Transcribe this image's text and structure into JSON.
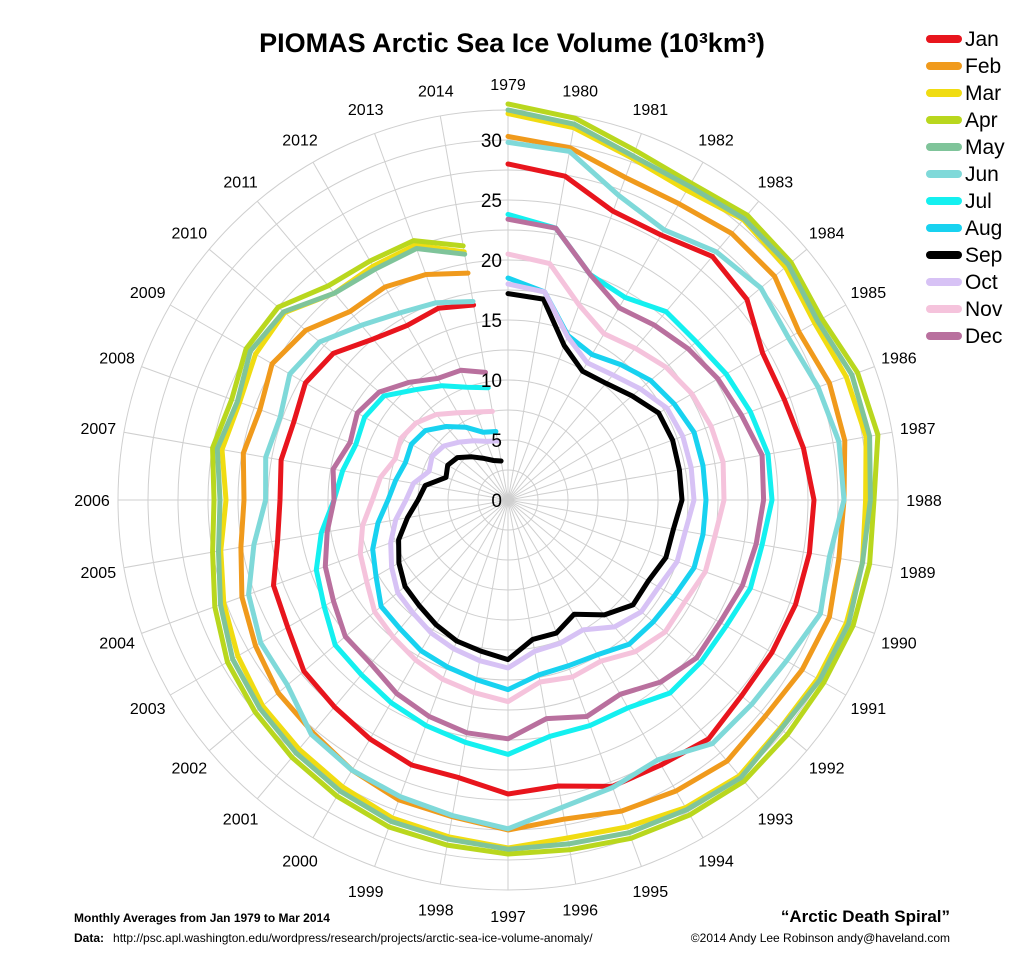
{
  "chart_data": {
    "type": "polar-line",
    "title": "PIOMAS Arctic Sea Ice Volume (10³km³)",
    "radial_axis": {
      "min": 0,
      "max": 30,
      "ticks": [
        0,
        5,
        10,
        15,
        20,
        25,
        30
      ],
      "tick_labels": [
        "0",
        "5",
        "10",
        "15",
        "20",
        "25",
        "30"
      ]
    },
    "grid": true,
    "legend_position": "top-right",
    "angular_categories": [
      "1979",
      "1980",
      "1981",
      "1982",
      "1983",
      "1984",
      "1985",
      "1986",
      "1987",
      "1988",
      "1989",
      "1990",
      "1991",
      "1992",
      "1993",
      "1994",
      "1995",
      "1996",
      "1997",
      "1998",
      "1999",
      "2000",
      "2001",
      "2002",
      "2003",
      "2004",
      "2005",
      "2006",
      "2007",
      "2008",
      "2009",
      "2010",
      "2011",
      "2012",
      "2013",
      "2014"
    ],
    "series": [
      {
        "name": "Jan",
        "color": "#e8151d",
        "values": [
          28.0,
          27.4,
          25.6,
          25.5,
          26.5,
          26.0,
          24.5,
          24.5,
          25.0,
          25.5,
          25.5,
          25.5,
          25.4,
          25.4,
          26.0,
          25.5,
          25.4,
          24.2,
          24.5,
          23.5,
          23.5,
          23.0,
          22.5,
          22.2,
          21.2,
          20.8,
          19.5,
          19.0,
          19.2,
          19.0,
          19.5,
          19.0,
          17.5,
          16.8,
          17.0,
          16.5
        ]
      },
      {
        "name": "Feb",
        "color": "#f09a1c",
        "values": [
          30.3,
          29.8,
          28.6,
          28.5,
          29.0,
          29.0,
          28.0,
          28.5,
          28.5,
          28.0,
          28.0,
          28.5,
          28.3,
          28.0,
          28.4,
          28.0,
          27.6,
          27.0,
          27.5,
          26.8,
          26.6,
          26.0,
          25.3,
          25.0,
          24.3,
          23.6,
          22.6,
          22.0,
          22.4,
          22.0,
          22.7,
          22.0,
          20.5,
          20.5,
          20.0,
          19.2
        ]
      },
      {
        "name": "Mar",
        "color": "#f0dc12",
        "values": [
          32.2,
          31.5,
          30.3,
          29.8,
          30.5,
          30.2,
          29.5,
          30.0,
          30.3,
          29.8,
          30.0,
          30.0,
          29.8,
          29.6,
          30.0,
          29.6,
          29.0,
          28.6,
          29.0,
          28.5,
          28.2,
          27.6,
          27.1,
          26.7,
          26.0,
          25.2,
          24.3,
          23.5,
          24.2,
          23.8,
          24.3,
          24.3,
          22.5,
          22.5,
          22.6,
          21.0
        ]
      },
      {
        "name": "Apr",
        "color": "#b9d71e",
        "values": [
          33.0,
          32.3,
          31.0,
          30.5,
          31.0,
          30.8,
          30.2,
          31.0,
          31.3,
          30.5,
          30.6,
          30.6,
          30.4,
          30.4,
          30.6,
          30.3,
          30.0,
          29.6,
          29.5,
          29.2,
          29.0,
          28.5,
          28.0,
          27.5,
          27.0,
          26.0,
          25.0,
          24.5,
          25.0,
          24.5,
          25.2,
          25.0,
          23.3,
          23.0,
          23.0,
          21.5
        ]
      },
      {
        "name": "May",
        "color": "#7fc49a",
        "values": [
          32.5,
          31.8,
          30.5,
          30.2,
          30.6,
          30.5,
          29.8,
          30.5,
          30.6,
          30.2,
          30.0,
          30.2,
          30.0,
          29.7,
          30.2,
          29.8,
          29.5,
          29.1,
          29.1,
          28.7,
          28.5,
          28.0,
          27.5,
          27.0,
          26.5,
          25.5,
          24.5,
          24.0,
          24.6,
          24.0,
          24.8,
          24.4,
          22.5,
          22.2,
          22.3,
          20.8
        ]
      },
      {
        "name": "Jun",
        "color": "#7fd9d9",
        "values": [
          29.8,
          29.5,
          27.0,
          26.0,
          27.0,
          27.5,
          27.0,
          27.5,
          28.0,
          28.0,
          27.2,
          27.7,
          26.8,
          26.5,
          26.5,
          25.0,
          25.5,
          26.0,
          27.4,
          26.7,
          26.3,
          26.0,
          25.5,
          24.0,
          23.8,
          23.0,
          21.5,
          20.2,
          20.5,
          20.2,
          21.0,
          20.5,
          19.0,
          18.0,
          17.5,
          16.8
        ]
      },
      {
        "name": "Jul",
        "color": "#14f0f0",
        "values": [
          23.8,
          23.0,
          20.0,
          19.5,
          20.5,
          20.5,
          21.0,
          21.5,
          22.0,
          22.0,
          21.5,
          21.5,
          21.0,
          21.0,
          21.0,
          20.0,
          20.0,
          20.0,
          21.2,
          20.5,
          20.0,
          19.5,
          19.0,
          18.8,
          17.7,
          17.0,
          15.8,
          14.5,
          14.0,
          13.5,
          13.8,
          13.5,
          12.0,
          11.0,
          10.0,
          9.5
        ]
      },
      {
        "name": "Aug",
        "color": "#18d2f0",
        "values": [
          18.5,
          17.6,
          14.6,
          14.0,
          14.7,
          15.5,
          16.0,
          16.5,
          16.5,
          16.5,
          16.5,
          16.5,
          16.0,
          15.8,
          15.7,
          14.9,
          14.7,
          14.8,
          15.8,
          15.2,
          14.8,
          14.5,
          14.0,
          13.8,
          12.7,
          12.0,
          11.0,
          10.0,
          9.5,
          9.1,
          9.3,
          9.0,
          8.0,
          7.0,
          6.0,
          5.8
        ]
      },
      {
        "name": "Sep",
        "color": "#000000",
        "values": [
          17.2,
          17.0,
          13.7,
          12.4,
          12.7,
          13.5,
          14.5,
          14.6,
          14.5,
          14.5,
          14.0,
          14.0,
          13.5,
          13.6,
          12.5,
          11.0,
          11.8,
          11.8,
          13.3,
          12.8,
          12.5,
          12.0,
          11.5,
          11.2,
          10.5,
          9.7,
          8.5,
          7.5,
          7.0,
          5.5,
          5.8,
          5.5,
          4.7,
          4.0,
          3.5,
          3.3
        ]
      },
      {
        "name": "Oct",
        "color": "#d7c2f5",
        "values": [
          18.0,
          17.6,
          14.5,
          13.2,
          13.6,
          14.4,
          15.3,
          15.5,
          15.5,
          15.5,
          15.0,
          15.0,
          14.5,
          14.5,
          13.8,
          12.5,
          12.7,
          12.8,
          14.0,
          13.6,
          13.2,
          12.8,
          12.3,
          12.0,
          11.2,
          10.4,
          9.5,
          8.5,
          8.0,
          7.0,
          7.3,
          7.0,
          6.3,
          5.7,
          5.2,
          5.0
        ]
      },
      {
        "name": "Nov",
        "color": "#f5c3dc",
        "values": [
          20.5,
          20.0,
          17.3,
          16.0,
          16.5,
          17.2,
          17.7,
          18.0,
          18.2,
          18.0,
          17.5,
          17.5,
          17.0,
          17.1,
          16.5,
          15.5,
          15.7,
          15.4,
          16.8,
          16.3,
          15.9,
          15.4,
          14.9,
          14.5,
          13.6,
          13.1,
          12.3,
          11.3,
          10.8,
          10.0,
          10.3,
          10.0,
          9.3,
          8.4,
          7.8,
          7.5
        ]
      },
      {
        "name": "Dec",
        "color": "#b9709e",
        "values": [
          23.4,
          23.0,
          20.0,
          18.5,
          19.0,
          19.6,
          20.2,
          20.7,
          21.5,
          21.3,
          21.0,
          20.8,
          20.4,
          20.5,
          19.8,
          18.7,
          19.2,
          18.5,
          19.9,
          19.7,
          19.2,
          18.6,
          17.8,
          17.7,
          16.8,
          16.2,
          15.3,
          14.5,
          14.8,
          14.0,
          14.5,
          14.0,
          12.8,
          11.7,
          11.5,
          10.8
        ]
      }
    ]
  },
  "footer": {
    "left_line1": "Monthly Averages from Jan 1979 to Mar 2014",
    "data_label": "Data:",
    "data_url": "http://psc.apl.washington.edu/wordpress/research/projects/arctic-sea-ice-volume-anomaly/",
    "subtitle": "“Arctic Death Spiral”",
    "credit": "©2014 Andy Lee Robinson andy@haveland.com"
  }
}
